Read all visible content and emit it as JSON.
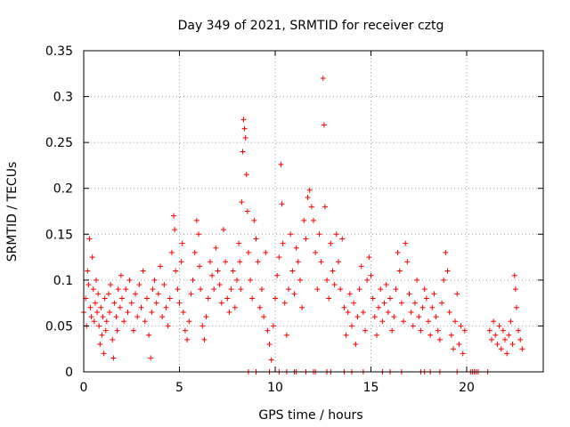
{
  "chart_data": {
    "type": "scatter",
    "title": "Day 349 of 2021, SRMTID for receiver cztg",
    "xlabel": "GPS time / hours",
    "ylabel": "SRMTID / TECUs",
    "xlim": [
      0,
      24
    ],
    "ylim": [
      0,
      0.35
    ],
    "x_ticks": [
      0,
      5,
      10,
      15,
      20
    ],
    "x_tick_labels": [
      "0",
      "5",
      "10",
      "15",
      "20"
    ],
    "y_ticks": [
      0,
      0.05,
      0.1,
      0.15,
      0.2,
      0.25,
      0.3,
      0.35
    ],
    "y_tick_labels": [
      "0",
      "0.05",
      "0.1",
      "0.15",
      "0.2",
      "0.25",
      "0.3",
      "0.35"
    ],
    "grid": true,
    "marker": "+",
    "color": "#ff0000",
    "series": [
      {
        "name": "SRMTID",
        "points": [
          [
            0.0,
            0.065
          ],
          [
            0.1,
            0.08
          ],
          [
            0.15,
            0.05
          ],
          [
            0.2,
            0.11
          ],
          [
            0.25,
            0.095
          ],
          [
            0.3,
            0.145
          ],
          [
            0.35,
            0.07
          ],
          [
            0.4,
            0.06
          ],
          [
            0.45,
            0.125
          ],
          [
            0.5,
            0.09
          ],
          [
            0.55,
            0.055
          ],
          [
            0.6,
            0.075
          ],
          [
            0.65,
            0.1
          ],
          [
            0.7,
            0.065
          ],
          [
            0.75,
            0.085
          ],
          [
            0.8,
            0.05
          ],
          [
            0.85,
            0.03
          ],
          [
            0.9,
            0.07
          ],
          [
            0.95,
            0.04
          ],
          [
            1.0,
            0.06
          ],
          [
            1.05,
            0.02
          ],
          [
            1.1,
            0.08
          ],
          [
            1.15,
            0.045
          ],
          [
            1.2,
            0.055
          ],
          [
            1.3,
            0.085
          ],
          [
            1.35,
            0.065
          ],
          [
            1.4,
            0.095
          ],
          [
            1.5,
            0.035
          ],
          [
            1.55,
            0.015
          ],
          [
            1.6,
            0.075
          ],
          [
            1.7,
            0.06
          ],
          [
            1.75,
            0.045
          ],
          [
            1.8,
            0.09
          ],
          [
            1.9,
            0.07
          ],
          [
            1.95,
            0.105
          ],
          [
            2.0,
            0.08
          ],
          [
            2.1,
            0.055
          ],
          [
            2.2,
            0.09
          ],
          [
            2.3,
            0.065
          ],
          [
            2.4,
            0.1
          ],
          [
            2.5,
            0.075
          ],
          [
            2.6,
            0.045
          ],
          [
            2.7,
            0.085
          ],
          [
            2.8,
            0.06
          ],
          [
            2.9,
            0.095
          ],
          [
            3.0,
            0.07
          ],
          [
            3.1,
            0.11
          ],
          [
            3.2,
            0.055
          ],
          [
            3.3,
            0.08
          ],
          [
            3.4,
            0.04
          ],
          [
            3.5,
            0.015
          ],
          [
            3.55,
            0.065
          ],
          [
            3.6,
            0.09
          ],
          [
            3.7,
            0.1
          ],
          [
            3.8,
            0.075
          ],
          [
            3.9,
            0.085
          ],
          [
            4.0,
            0.115
          ],
          [
            4.1,
            0.06
          ],
          [
            4.2,
            0.095
          ],
          [
            4.3,
            0.07
          ],
          [
            4.4,
            0.05
          ],
          [
            4.5,
            0.08
          ],
          [
            4.6,
            0.13
          ],
          [
            4.7,
            0.17
          ],
          [
            4.75,
            0.155
          ],
          [
            4.8,
            0.11
          ],
          [
            4.9,
            0.09
          ],
          [
            5.0,
            0.075
          ],
          [
            5.1,
            0.12
          ],
          [
            5.15,
            0.14
          ],
          [
            5.2,
            0.065
          ],
          [
            5.3,
            0.045
          ],
          [
            5.4,
            0.035
          ],
          [
            5.5,
            0.055
          ],
          [
            5.6,
            0.085
          ],
          [
            5.7,
            0.1
          ],
          [
            5.8,
            0.13
          ],
          [
            5.9,
            0.165
          ],
          [
            6.0,
            0.15
          ],
          [
            6.05,
            0.115
          ],
          [
            6.1,
            0.09
          ],
          [
            6.2,
            0.05
          ],
          [
            6.3,
            0.035
          ],
          [
            6.4,
            0.06
          ],
          [
            6.5,
            0.08
          ],
          [
            6.6,
            0.12
          ],
          [
            6.7,
            0.105
          ],
          [
            6.8,
            0.09
          ],
          [
            6.9,
            0.135
          ],
          [
            7.0,
            0.11
          ],
          [
            7.1,
            0.095
          ],
          [
            7.2,
            0.075
          ],
          [
            7.3,
            0.155
          ],
          [
            7.4,
            0.12
          ],
          [
            7.5,
            0.08
          ],
          [
            7.6,
            0.065
          ],
          [
            7.7,
            0.09
          ],
          [
            7.8,
            0.11
          ],
          [
            7.9,
            0.07
          ],
          [
            8.0,
            0.1
          ],
          [
            8.1,
            0.14
          ],
          [
            8.15,
            0.12
          ],
          [
            8.2,
            0.09
          ],
          [
            8.25,
            0.185
          ],
          [
            8.3,
            0.24
          ],
          [
            8.35,
            0.275
          ],
          [
            8.4,
            0.265
          ],
          [
            8.45,
            0.255
          ],
          [
            8.5,
            0.215
          ],
          [
            8.55,
            0.175
          ],
          [
            8.6,
            0.13
          ],
          [
            8.7,
            0.1
          ],
          [
            8.8,
            0.08
          ],
          [
            8.9,
            0.165
          ],
          [
            9.0,
            0.145
          ],
          [
            9.1,
            0.12
          ],
          [
            9.2,
            0.07
          ],
          [
            9.3,
            0.09
          ],
          [
            9.4,
            0.06
          ],
          [
            9.5,
            0.13
          ],
          [
            9.6,
            0.045
          ],
          [
            9.7,
            0.03
          ],
          [
            9.8,
            0.013
          ],
          [
            9.9,
            0.05
          ],
          [
            10.0,
            0.08
          ],
          [
            10.1,
            0.105
          ],
          [
            10.2,
            0.125
          ],
          [
            10.3,
            0.226
          ],
          [
            10.35,
            0.183
          ],
          [
            10.4,
            0.14
          ],
          [
            10.5,
            0.075
          ],
          [
            10.6,
            0.04
          ],
          [
            10.7,
            0.09
          ],
          [
            10.8,
            0.15
          ],
          [
            10.9,
            0.11
          ],
          [
            11.0,
            0.085
          ],
          [
            11.1,
            0.135
          ],
          [
            11.2,
            0.12
          ],
          [
            11.3,
            0.1
          ],
          [
            11.4,
            0.07
          ],
          [
            11.5,
            0.165
          ],
          [
            11.6,
            0.145
          ],
          [
            11.7,
            0.19
          ],
          [
            11.8,
            0.198
          ],
          [
            11.9,
            0.18
          ],
          [
            12.0,
            0.165
          ],
          [
            12.1,
            0.13
          ],
          [
            12.2,
            0.09
          ],
          [
            12.3,
            0.15
          ],
          [
            12.4,
            0.12
          ],
          [
            12.5,
            0.32
          ],
          [
            12.55,
            0.269
          ],
          [
            12.6,
            0.18
          ],
          [
            12.7,
            0.1
          ],
          [
            12.8,
            0.08
          ],
          [
            12.9,
            0.14
          ],
          [
            13.0,
            0.11
          ],
          [
            13.1,
            0.095
          ],
          [
            13.2,
            0.15
          ],
          [
            13.3,
            0.12
          ],
          [
            13.4,
            0.09
          ],
          [
            13.5,
            0.145
          ],
          [
            13.6,
            0.07
          ],
          [
            13.7,
            0.04
          ],
          [
            13.8,
            0.065
          ],
          [
            13.9,
            0.085
          ],
          [
            14.0,
            0.05
          ],
          [
            14.1,
            0.075
          ],
          [
            14.2,
            0.03
          ],
          [
            14.3,
            0.06
          ],
          [
            14.4,
            0.09
          ],
          [
            14.5,
            0.115
          ],
          [
            14.6,
            0.065
          ],
          [
            14.7,
            0.045
          ],
          [
            14.8,
            0.1
          ],
          [
            14.9,
            0.125
          ],
          [
            15.0,
            0.105
          ],
          [
            15.1,
            0.08
          ],
          [
            15.2,
            0.06
          ],
          [
            15.3,
            0.04
          ],
          [
            15.4,
            0.07
          ],
          [
            15.5,
            0.09
          ],
          [
            15.6,
            0.055
          ],
          [
            15.7,
            0.075
          ],
          [
            15.8,
            0.095
          ],
          [
            15.9,
            0.065
          ],
          [
            16.0,
            0.08
          ],
          [
            16.1,
            0.045
          ],
          [
            16.2,
            0.06
          ],
          [
            16.3,
            0.09
          ],
          [
            16.4,
            0.13
          ],
          [
            16.5,
            0.11
          ],
          [
            16.6,
            0.075
          ],
          [
            16.7,
            0.055
          ],
          [
            16.8,
            0.14
          ],
          [
            16.9,
            0.12
          ],
          [
            17.0,
            0.085
          ],
          [
            17.1,
            0.065
          ],
          [
            17.2,
            0.05
          ],
          [
            17.3,
            0.075
          ],
          [
            17.4,
            0.1
          ],
          [
            17.5,
            0.06
          ],
          [
            17.6,
            0.045
          ],
          [
            17.7,
            0.07
          ],
          [
            17.8,
            0.09
          ],
          [
            17.9,
            0.08
          ],
          [
            18.0,
            0.055
          ],
          [
            18.1,
            0.04
          ],
          [
            18.2,
            0.07
          ],
          [
            18.3,
            0.085
          ],
          [
            18.4,
            0.06
          ],
          [
            18.5,
            0.045
          ],
          [
            18.6,
            0.035
          ],
          [
            18.7,
            0.075
          ],
          [
            18.8,
            0.1
          ],
          [
            18.9,
            0.13
          ],
          [
            19.0,
            0.11
          ],
          [
            19.1,
            0.065
          ],
          [
            19.2,
            0.04
          ],
          [
            19.3,
            0.025
          ],
          [
            19.4,
            0.055
          ],
          [
            19.5,
            0.085
          ],
          [
            19.6,
            0.03
          ],
          [
            19.7,
            0.05
          ],
          [
            19.8,
            0.02
          ],
          [
            19.9,
            0.045
          ],
          [
            21.2,
            0.045
          ],
          [
            21.3,
            0.035
          ],
          [
            21.4,
            0.055
          ],
          [
            21.5,
            0.04
          ],
          [
            21.6,
            0.03
          ],
          [
            21.7,
            0.05
          ],
          [
            21.8,
            0.025
          ],
          [
            21.9,
            0.045
          ],
          [
            22.0,
            0.035
          ],
          [
            22.1,
            0.02
          ],
          [
            22.2,
            0.04
          ],
          [
            22.3,
            0.055
          ],
          [
            22.4,
            0.03
          ],
          [
            22.5,
            0.105
          ],
          [
            22.55,
            0.09
          ],
          [
            22.6,
            0.07
          ],
          [
            22.7,
            0.045
          ],
          [
            22.8,
            0.035
          ],
          [
            22.9,
            0.025
          ]
        ]
      }
    ],
    "zero_markers_x": [
      8.6,
      9.0,
      9.7,
      10.2,
      10.6,
      11.0,
      11.1,
      11.6,
      12.0,
      12.1,
      12.7,
      12.9,
      13.6,
      14.0,
      14.6,
      15.6,
      16.0,
      16.6,
      17.6,
      17.8,
      18.1,
      18.6,
      19.5,
      20.2,
      20.3,
      20.4,
      20.5,
      20.6,
      21.1
    ]
  }
}
